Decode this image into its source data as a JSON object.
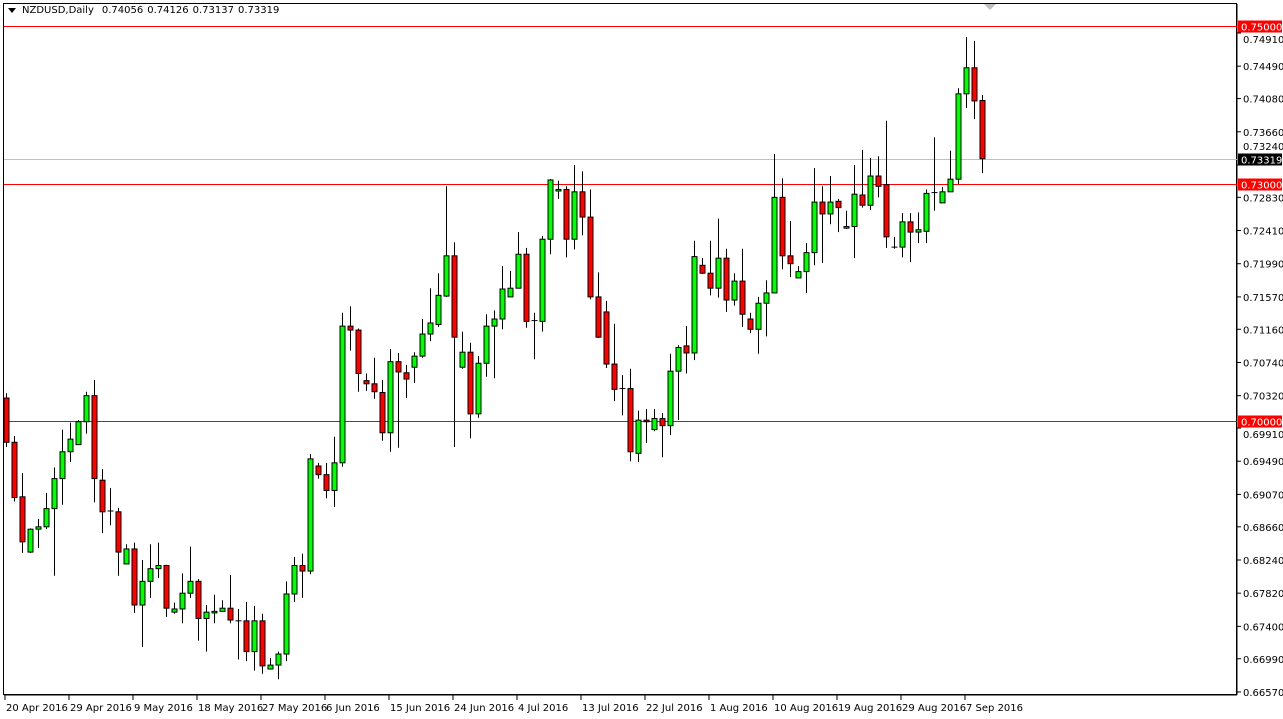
{
  "header": {
    "symbol": "NZDUSD,Daily",
    "open": "0.74056",
    "high": "0.74126",
    "low": "0.73137",
    "close": "0.73319"
  },
  "colors": {
    "bull": "#00ff00",
    "bear": "#ff0000",
    "outline": "#000000",
    "level_line": "#ff0000",
    "bid_line": "#c0c0c0"
  },
  "chart_data": {
    "type": "candlestick",
    "symbol": "NZDUSD",
    "timeframe": "Daily",
    "ylim": [
      0.6657,
      0.7505
    ],
    "y_ticks": [
      "0.74910",
      "0.74490",
      "0.74080",
      "0.73660",
      "0.73240",
      "0.72830",
      "0.72410",
      "0.71990",
      "0.71570",
      "0.71160",
      "0.70740",
      "0.70320",
      "0.69910",
      "0.69490",
      "0.69070",
      "0.68660",
      "0.68240",
      "0.67820",
      "0.67400",
      "0.66990",
      "0.66570"
    ],
    "x_ticks": [
      "20 Apr 2016",
      "29 Apr 2016",
      "9 May 2016",
      "18 May 2016",
      "27 May 2016",
      "6 Jun 2016",
      "15 Jun 2016",
      "24 Jun 2016",
      "4 Jul 2016",
      "13 Jul 2016",
      "22 Jul 2016",
      "1 Aug 2016",
      "10 Aug 2016",
      "19 Aug 2016",
      "29 Aug 2016",
      "7 Sep 2016"
    ],
    "horizontal_levels": [
      {
        "price": 0.75,
        "label": "0.75000"
      },
      {
        "price": 0.73,
        "label": "0.73000"
      },
      {
        "price": 0.7,
        "label": "0.70000"
      }
    ],
    "bid": {
      "price": 0.73319,
      "label": "0.73319"
    },
    "ohlc_fields": [
      "open",
      "high",
      "low",
      "close"
    ],
    "candles": [
      [
        0.7029,
        0.7035,
        0.6967,
        0.6973
      ],
      [
        0.6973,
        0.6981,
        0.6898,
        0.6903
      ],
      [
        0.6904,
        0.6934,
        0.6833,
        0.6847
      ],
      [
        0.6834,
        0.6864,
        0.6833,
        0.6863
      ],
      [
        0.6863,
        0.6876,
        0.6839,
        0.6866
      ],
      [
        0.6866,
        0.6909,
        0.6863,
        0.6889
      ],
      [
        0.6889,
        0.6941,
        0.6804,
        0.6927
      ],
      [
        0.6927,
        0.6989,
        0.6894,
        0.6961
      ],
      [
        0.6961,
        0.6998,
        0.6948,
        0.6977
      ],
      [
        0.697,
        0.7001,
        0.697,
        0.6999
      ],
      [
        0.6999,
        0.7037,
        0.6984,
        0.7032
      ],
      [
        0.7032,
        0.7052,
        0.6897,
        0.6927
      ],
      [
        0.6925,
        0.6939,
        0.6858,
        0.6885
      ],
      [
        0.6885,
        0.6915,
        0.6868,
        0.6886
      ],
      [
        0.6885,
        0.689,
        0.6804,
        0.6834
      ],
      [
        0.6819,
        0.6844,
        0.6819,
        0.6838
      ],
      [
        0.6838,
        0.6846,
        0.6757,
        0.6767
      ],
      [
        0.6767,
        0.6824,
        0.6714,
        0.6797
      ],
      [
        0.6797,
        0.6844,
        0.6776,
        0.6813
      ],
      [
        0.6813,
        0.6846,
        0.6801,
        0.6817
      ],
      [
        0.6817,
        0.6818,
        0.6752,
        0.6763
      ],
      [
        0.6758,
        0.677,
        0.6756,
        0.6762
      ],
      [
        0.6762,
        0.6807,
        0.6744,
        0.6782
      ],
      [
        0.6782,
        0.6841,
        0.6776,
        0.6797
      ],
      [
        0.6797,
        0.68,
        0.6722,
        0.675
      ],
      [
        0.675,
        0.6767,
        0.6708,
        0.6758
      ],
      [
        0.6757,
        0.678,
        0.6744,
        0.6759
      ],
      [
        0.6759,
        0.6773,
        0.6758,
        0.6763
      ],
      [
        0.6763,
        0.6805,
        0.6744,
        0.6748
      ],
      [
        0.6747,
        0.6762,
        0.6698,
        0.6746
      ],
      [
        0.6747,
        0.6771,
        0.6696,
        0.6708
      ],
      [
        0.6708,
        0.6766,
        0.6684,
        0.6747
      ],
      [
        0.6747,
        0.6756,
        0.668,
        0.669
      ],
      [
        0.6686,
        0.67,
        0.6686,
        0.6691
      ],
      [
        0.6691,
        0.6708,
        0.6673,
        0.6705
      ],
      [
        0.6705,
        0.6797,
        0.6696,
        0.6781
      ],
      [
        0.6781,
        0.6828,
        0.6771,
        0.6817
      ],
      [
        0.6817,
        0.6832,
        0.6776,
        0.681
      ],
      [
        0.681,
        0.6958,
        0.6806,
        0.6952
      ],
      [
        0.6943,
        0.6947,
        0.6927,
        0.6932
      ],
      [
        0.6932,
        0.6947,
        0.6902,
        0.6912
      ],
      [
        0.6912,
        0.698,
        0.6891,
        0.6947
      ],
      [
        0.6947,
        0.7137,
        0.6942,
        0.712
      ],
      [
        0.712,
        0.7145,
        0.7089,
        0.7115
      ],
      [
        0.7115,
        0.7117,
        0.7037,
        0.706
      ],
      [
        0.7051,
        0.706,
        0.7038,
        0.7047
      ],
      [
        0.7047,
        0.708,
        0.7028,
        0.7037
      ],
      [
        0.7036,
        0.7052,
        0.6975,
        0.6985
      ],
      [
        0.6985,
        0.7091,
        0.6961,
        0.7075
      ],
      [
        0.7075,
        0.7086,
        0.6966,
        0.7062
      ],
      [
        0.7061,
        0.7071,
        0.7029,
        0.7053
      ],
      [
        0.7068,
        0.7087,
        0.7048,
        0.7082
      ],
      [
        0.7082,
        0.7129,
        0.708,
        0.711
      ],
      [
        0.711,
        0.7168,
        0.7101,
        0.7124
      ],
      [
        0.7122,
        0.7187,
        0.7119,
        0.7159
      ],
      [
        0.7158,
        0.7297,
        0.7157,
        0.7209
      ],
      [
        0.7209,
        0.7226,
        0.6967,
        0.7106
      ],
      [
        0.7068,
        0.7113,
        0.7066,
        0.7087
      ],
      [
        0.7087,
        0.7099,
        0.6978,
        0.7009
      ],
      [
        0.7009,
        0.7082,
        0.7004,
        0.7073
      ],
      [
        0.7073,
        0.7135,
        0.7056,
        0.712
      ],
      [
        0.712,
        0.714,
        0.7054,
        0.7129
      ],
      [
        0.7129,
        0.7196,
        0.7116,
        0.7167
      ],
      [
        0.7157,
        0.719,
        0.7157,
        0.7168
      ],
      [
        0.7168,
        0.7239,
        0.7168,
        0.7211
      ],
      [
        0.7211,
        0.7219,
        0.7118,
        0.7126
      ],
      [
        0.7126,
        0.7137,
        0.7078,
        0.7127
      ],
      [
        0.7126,
        0.7234,
        0.7113,
        0.723
      ],
      [
        0.723,
        0.7306,
        0.7211,
        0.7305
      ],
      [
        0.7291,
        0.7304,
        0.7281,
        0.7293
      ],
      [
        0.7293,
        0.7297,
        0.7207,
        0.723
      ],
      [
        0.723,
        0.7324,
        0.7217,
        0.729
      ],
      [
        0.729,
        0.7316,
        0.7235,
        0.7258
      ],
      [
        0.7258,
        0.7293,
        0.7154,
        0.7157
      ],
      [
        0.7157,
        0.7188,
        0.7105,
        0.7106
      ],
      [
        0.7138,
        0.7152,
        0.7067,
        0.7072
      ],
      [
        0.7072,
        0.7123,
        0.7025,
        0.704
      ],
      [
        0.7041,
        0.7058,
        0.7007,
        0.704
      ],
      [
        0.7041,
        0.7066,
        0.6949,
        0.6961
      ],
      [
        0.6959,
        0.7013,
        0.6948,
        0.7001
      ],
      [
        0.7001,
        0.7015,
        0.6972,
        0.6999
      ],
      [
        0.6989,
        0.7015,
        0.6987,
        0.7003
      ],
      [
        0.7003,
        0.701,
        0.6954,
        0.6994
      ],
      [
        0.6994,
        0.7085,
        0.6982,
        0.7063
      ],
      [
        0.7063,
        0.7096,
        0.7001,
        0.7093
      ],
      [
        0.7095,
        0.712,
        0.706,
        0.7086
      ],
      [
        0.7086,
        0.7228,
        0.7077,
        0.7208
      ],
      [
        0.7197,
        0.7206,
        0.7186,
        0.7187
      ],
      [
        0.7187,
        0.7228,
        0.7159,
        0.7168
      ],
      [
        0.7168,
        0.7256,
        0.7156,
        0.7206
      ],
      [
        0.7206,
        0.7218,
        0.7138,
        0.7153
      ],
      [
        0.7153,
        0.7187,
        0.7146,
        0.7177
      ],
      [
        0.7177,
        0.7218,
        0.7119,
        0.7135
      ],
      [
        0.7129,
        0.7137,
        0.7111,
        0.7116
      ],
      [
        0.7116,
        0.7157,
        0.7085,
        0.7149
      ],
      [
        0.7149,
        0.7178,
        0.7107,
        0.7162
      ],
      [
        0.7162,
        0.7338,
        0.7162,
        0.7283
      ],
      [
        0.7283,
        0.7307,
        0.7192,
        0.7209
      ],
      [
        0.7209,
        0.7253,
        0.7182,
        0.7199
      ],
      [
        0.7181,
        0.7196,
        0.7181,
        0.7189
      ],
      [
        0.7189,
        0.7225,
        0.7162,
        0.7213
      ],
      [
        0.7213,
        0.732,
        0.7197,
        0.7277
      ],
      [
        0.7277,
        0.7297,
        0.72,
        0.7262
      ],
      [
        0.7262,
        0.731,
        0.7249,
        0.7277
      ],
      [
        0.7278,
        0.7281,
        0.7239,
        0.727
      ],
      [
        0.7244,
        0.7266,
        0.7243,
        0.7246
      ],
      [
        0.7246,
        0.7324,
        0.7206,
        0.7287
      ],
      [
        0.7286,
        0.7343,
        0.727,
        0.7273
      ],
      [
        0.7273,
        0.7333,
        0.7267,
        0.731
      ],
      [
        0.731,
        0.7335,
        0.7283,
        0.7297
      ],
      [
        0.7299,
        0.738,
        0.7219,
        0.7233
      ],
      [
        0.722,
        0.7233,
        0.7218,
        0.7219
      ],
      [
        0.722,
        0.7263,
        0.7207,
        0.7252
      ],
      [
        0.7252,
        0.7263,
        0.7201,
        0.7239
      ],
      [
        0.7239,
        0.7264,
        0.7225,
        0.7242
      ],
      [
        0.724,
        0.7293,
        0.7225,
        0.7288
      ],
      [
        0.7288,
        0.7359,
        0.7266,
        0.7289
      ],
      [
        0.7276,
        0.7296,
        0.7276,
        0.729
      ],
      [
        0.729,
        0.7342,
        0.729,
        0.7306
      ],
      [
        0.7306,
        0.7421,
        0.73,
        0.7414
      ],
      [
        0.7414,
        0.7486,
        0.7396,
        0.7447
      ],
      [
        0.7447,
        0.7481,
        0.7382,
        0.7405
      ],
      [
        0.74056,
        0.74126,
        0.73137,
        0.73319
      ]
    ]
  }
}
